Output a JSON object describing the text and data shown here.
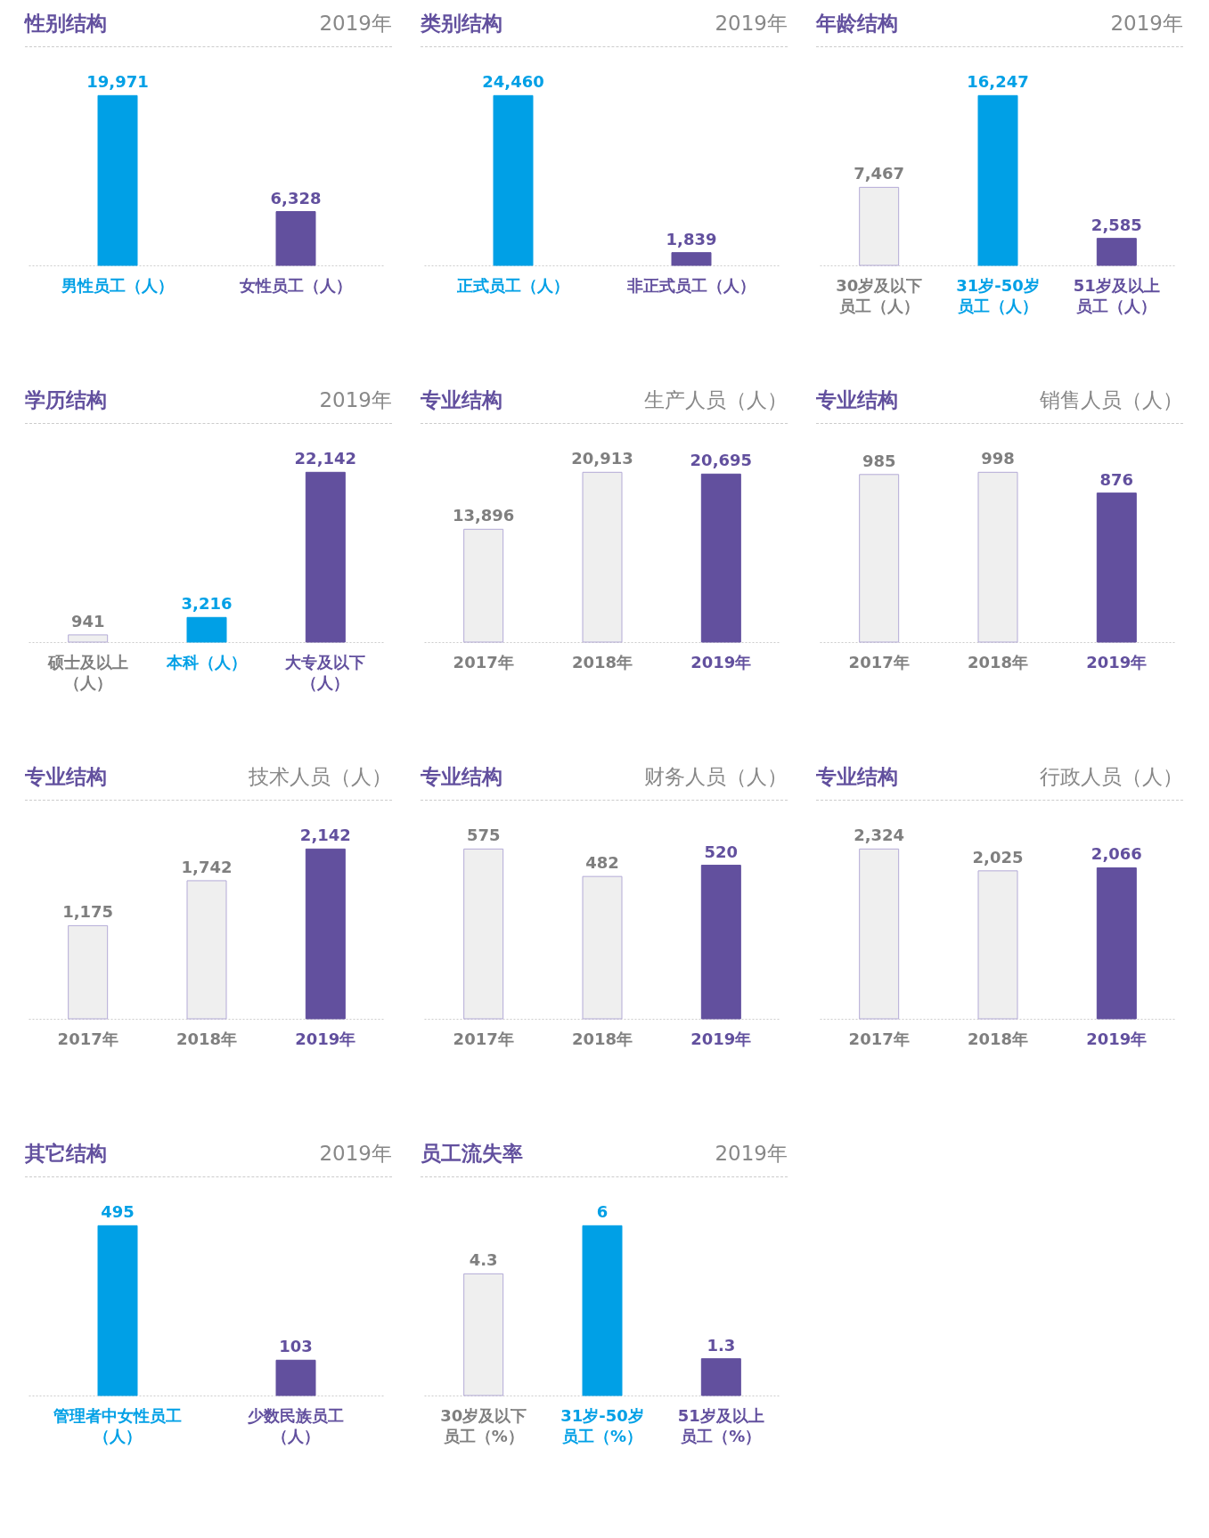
{
  "chart_data": [
    {
      "type": "bar",
      "title": "性别结构",
      "subtitle": "2019年",
      "categories": [
        "男性员工（人）",
        "女性员工（人）"
      ],
      "values": [
        19971,
        6328
      ],
      "colors": [
        "#00a0e6",
        "#62509e"
      ],
      "value_labels": [
        "19,971",
        "6,328"
      ]
    },
    {
      "type": "bar",
      "title": "类别结构",
      "subtitle": "2019年",
      "categories": [
        "正式员工（人）",
        "非正式员工（人）"
      ],
      "values": [
        24460,
        1839
      ],
      "colors": [
        "#00a0e6",
        "#62509e"
      ],
      "value_labels": [
        "24,460",
        "1,839"
      ]
    },
    {
      "type": "bar",
      "title": "年龄结构",
      "subtitle": "2019年",
      "categories": [
        "30岁及以下员工（人）",
        "31岁-50岁员工（人）",
        "51岁及以上员工（人）"
      ],
      "values": [
        7467,
        16247,
        2585
      ],
      "colors": [
        "#efefef",
        "#00a0e6",
        "#62509e"
      ],
      "value_labels": [
        "7,467",
        "16,247",
        "2,585"
      ]
    },
    {
      "type": "bar",
      "title": "学历结构",
      "subtitle": "2019年",
      "categories": [
        "硕士及以上（人）",
        "本科（人）",
        "大专及以下（人）"
      ],
      "values": [
        941,
        3216,
        22142
      ],
      "colors": [
        "#efefef",
        "#00a0e6",
        "#62509e"
      ],
      "value_labels": [
        "941",
        "3,216",
        "22,142"
      ]
    },
    {
      "type": "bar",
      "title": "专业结构",
      "subtitle": "生产人员（人）",
      "categories": [
        "2017年",
        "2018年",
        "2019年"
      ],
      "values": [
        13896,
        20913,
        20695
      ],
      "colors": [
        "#efefef",
        "#efefef",
        "#62509e"
      ],
      "value_labels": [
        "13,896",
        "20,913",
        "20,695"
      ]
    },
    {
      "type": "bar",
      "title": "专业结构",
      "subtitle": "销售人员（人）",
      "categories": [
        "2017年",
        "2018年",
        "2019年"
      ],
      "values": [
        985,
        998,
        876
      ],
      "colors": [
        "#efefef",
        "#efefef",
        "#62509e"
      ],
      "value_labels": [
        "985",
        "998",
        "876"
      ]
    },
    {
      "type": "bar",
      "title": "专业结构",
      "subtitle": "技术人员（人）",
      "categories": [
        "2017年",
        "2018年",
        "2019年"
      ],
      "values": [
        1175,
        1742,
        2142
      ],
      "colors": [
        "#efefef",
        "#efefef",
        "#62509e"
      ],
      "value_labels": [
        "1,175",
        "1,742",
        "2,142"
      ]
    },
    {
      "type": "bar",
      "title": "专业结构",
      "subtitle": "财务人员（人）",
      "categories": [
        "2017年",
        "2018年",
        "2019年"
      ],
      "values": [
        575,
        482,
        520
      ],
      "colors": [
        "#efefef",
        "#efefef",
        "#62509e"
      ],
      "value_labels": [
        "575",
        "482",
        "520"
      ]
    },
    {
      "type": "bar",
      "title": "专业结构",
      "subtitle": "行政人员（人）",
      "categories": [
        "2017年",
        "2018年",
        "2019年"
      ],
      "values": [
        2324,
        2025,
        2066
      ],
      "colors": [
        "#efefef",
        "#efefef",
        "#62509e"
      ],
      "value_labels": [
        "2,324",
        "2,025",
        "2,066"
      ]
    },
    {
      "type": "bar",
      "title": "其它结构",
      "subtitle": "2019年",
      "categories": [
        "管理者中女性员工（人）",
        "少数民族员工（人）"
      ],
      "values": [
        495,
        103
      ],
      "colors": [
        "#00a0e6",
        "#62509e"
      ],
      "value_labels": [
        "495",
        "103"
      ]
    },
    {
      "type": "bar",
      "title": "员工流失率",
      "subtitle": "2019年",
      "categories": [
        "30岁及以下员工（%）",
        "31岁-50岁员工（%）",
        "51岁及以上员工（%）"
      ],
      "values": [
        4.3,
        6,
        1.3
      ],
      "colors": [
        "#efefef",
        "#00a0e6",
        "#62509e"
      ],
      "value_labels": [
        "4.3",
        "6",
        "1.3"
      ]
    }
  ]
}
